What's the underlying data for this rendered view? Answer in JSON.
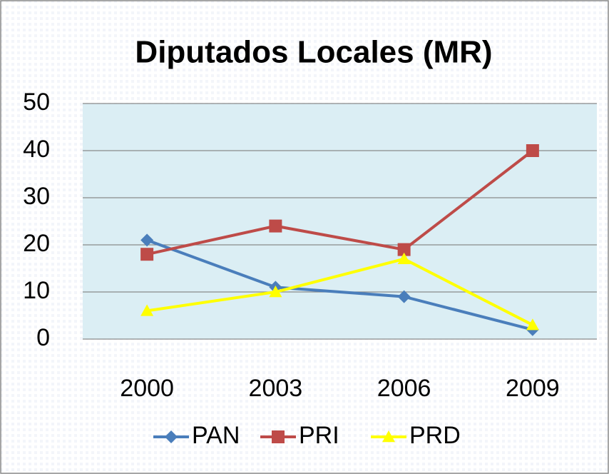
{
  "chart_data": {
    "type": "line",
    "title": "Diputados Locales (MR)",
    "categories": [
      "2000",
      "2003",
      "2006",
      "2009"
    ],
    "series": [
      {
        "name": "PAN",
        "color": "#4a7ebb",
        "marker": "diamond",
        "values": [
          21,
          11,
          9,
          2
        ]
      },
      {
        "name": "PRI",
        "color": "#be4b48",
        "marker": "square",
        "values": [
          18,
          24,
          19,
          40
        ]
      },
      {
        "name": "PRD",
        "color": "#ffff00",
        "marker": "triangle",
        "values": [
          6,
          10,
          17,
          3
        ]
      }
    ],
    "ylim": [
      0,
      50
    ],
    "yticks": [
      0,
      10,
      20,
      30,
      40,
      50
    ],
    "grid": true,
    "legend": "bottom"
  }
}
